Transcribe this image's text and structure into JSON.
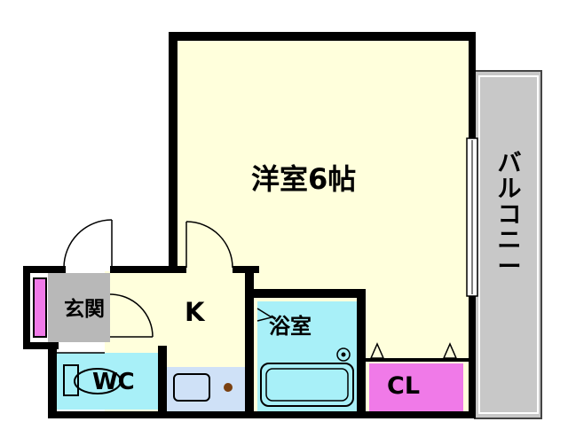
{
  "rooms": {
    "western_room": "洋室6帖",
    "entrance": "玄関",
    "kitchen": "K",
    "bathroom": "浴室",
    "toilet": "WC",
    "closet": "CL",
    "balcony": "バルコニー"
  },
  "colors": {
    "wall": "#000000",
    "western_room_floor": "#ffffdc",
    "kitchen_floor": "#ffffdc",
    "entrance_floor": "#b8b8b8",
    "wet_area_floor": "#a8f0f8",
    "closet_floor": "#f07ae8",
    "balcony": "#c8c8c8",
    "sink_counter": "#cfe1f7"
  }
}
